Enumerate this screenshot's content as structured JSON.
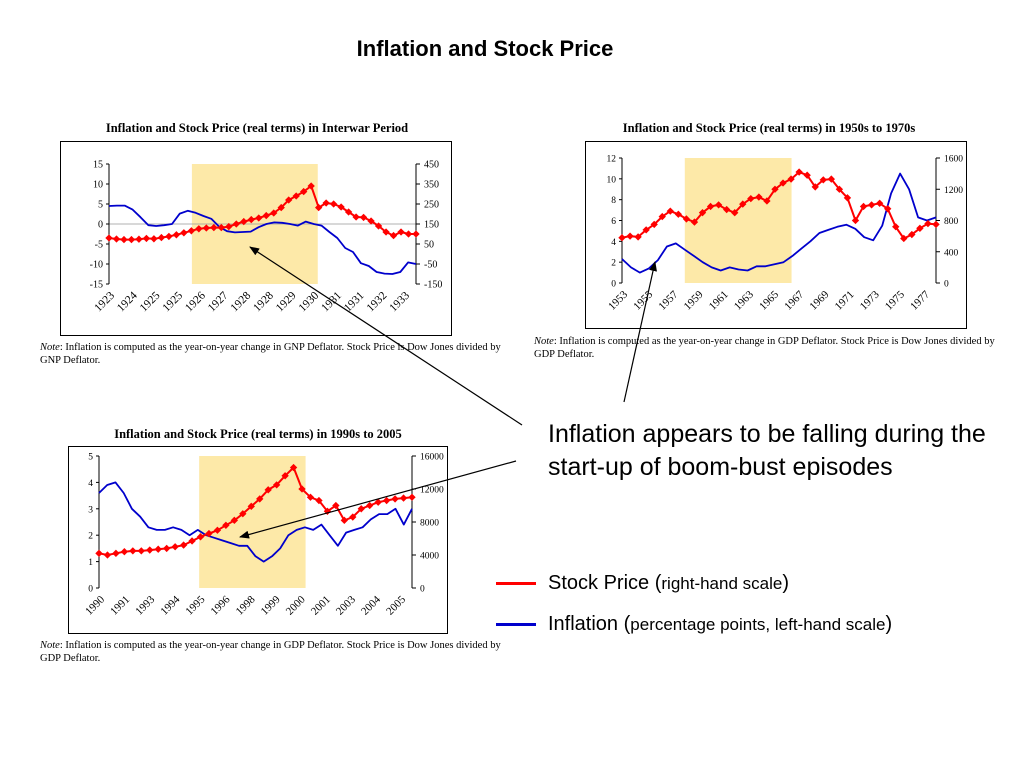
{
  "slide_title": "Inflation and Stock Price",
  "callout": "Inflation appears to be falling during the start-up of boom-bust episodes",
  "legend": [
    {
      "name": "Stock Price",
      "detail": "right-hand scale",
      "color": "#ff0000"
    },
    {
      "name": "Inflation",
      "detail": "percentage points, left-hand scale",
      "color": "#0000cc"
    }
  ],
  "colors": {
    "stock": "#ff0000",
    "inflation": "#0000cc",
    "boom_shade": "#fde9a8"
  },
  "chart_data": [
    {
      "type": "line",
      "title": "Inflation and Stock Price (real terms)  in Interwar Period",
      "note_label": "Note",
      "note_text": ": Inflation is computed as the year-on-year change in GNP Deflator. Stock Price is Dow Jones divided by GNP Deflator.",
      "x_labels": [
        "1923",
        "1924",
        "1925",
        "1925",
        "1926",
        "1927",
        "1928",
        "1928",
        "1929",
        "1930",
        "1931",
        "1931",
        "1932",
        "1933"
      ],
      "left_axis": {
        "ticks": [
          "15",
          "10",
          "5",
          "0",
          "-5",
          "-10",
          "-15"
        ],
        "range": [
          -15,
          15
        ]
      },
      "right_axis": {
        "ticks": [
          "450",
          "350",
          "250",
          "150",
          "50",
          "-50",
          "-150"
        ],
        "range": [
          -150,
          450
        ]
      },
      "zero_line": true,
      "boom_period": [
        0.27,
        0.68
      ],
      "series": [
        {
          "name": "Inflation",
          "axis": "left",
          "values": [
            4.5,
            4.6,
            4.6,
            3.6,
            1.7,
            -0.3,
            -0.5,
            -0.3,
            0.0,
            2.6,
            3.3,
            2.8,
            2.0,
            1.3,
            -0.7,
            -1.8,
            -2.1,
            -2.0,
            -1.9,
            -0.8,
            0.0,
            0.4,
            0.3,
            0.0,
            -0.4,
            0.6,
            0.0,
            -0.4,
            -2.0,
            -3.5,
            -6.0,
            -7.0,
            -9.8,
            -10.5,
            -12.0,
            -12.4,
            -12.5,
            -12.0,
            -9.6,
            -10.0
          ]
        },
        {
          "name": "Stock Price",
          "axis": "right",
          "values": [
            80,
            75,
            72,
            72,
            74,
            78,
            76,
            82,
            88,
            96,
            106,
            116,
            126,
            130,
            132,
            132,
            137,
            150,
            162,
            172,
            180,
            192,
            205,
            232,
            270,
            290,
            312,
            340,
            232,
            255,
            250,
            235,
            210,
            185,
            183,
            165,
            140,
            110,
            92,
            110,
            100,
            100
          ]
        }
      ]
    },
    {
      "type": "line",
      "title": "Inflation and Stock Price (real terms) in 1950s to 1970s",
      "note_label": "Note",
      "note_text": ": Inflation is computed as the year-on-year change in GDP Deflator. Stock Price is Dow Jones divided by GDP Deflator.",
      "x_labels": [
        "1953",
        "1955",
        "1957",
        "1959",
        "1961",
        "1963",
        "1965",
        "1967",
        "1969",
        "1971",
        "1973",
        "1975",
        "1977"
      ],
      "left_axis": {
        "ticks": [
          "12",
          "10",
          "8",
          "6",
          "4",
          "2",
          "0"
        ],
        "range": [
          0,
          12
        ]
      },
      "right_axis": {
        "ticks": [
          "1600",
          "1200",
          "800",
          "400",
          "0"
        ],
        "range": [
          0,
          1600
        ]
      },
      "zero_line": false,
      "boom_period": [
        0.2,
        0.54
      ],
      "series": [
        {
          "name": "Inflation",
          "axis": "left",
          "values": [
            2.3,
            1.5,
            1.0,
            1.4,
            2.2,
            3.5,
            3.8,
            3.2,
            2.6,
            2.0,
            1.5,
            1.2,
            1.5,
            1.3,
            1.2,
            1.6,
            1.6,
            1.8,
            2.0,
            2.6,
            3.3,
            4.0,
            4.8,
            5.1,
            5.4,
            5.6,
            5.2,
            4.4,
            4.1,
            5.5,
            8.6,
            10.5,
            9.0,
            6.3,
            6.0,
            6.3
          ]
        },
        {
          "name": "Stock Price",
          "axis": "right",
          "values": [
            580,
            600,
            590,
            680,
            750,
            850,
            920,
            880,
            820,
            780,
            900,
            980,
            1000,
            940,
            900,
            1010,
            1080,
            1100,
            1050,
            1200,
            1280,
            1330,
            1420,
            1380,
            1230,
            1320,
            1330,
            1200,
            1090,
            800,
            980,
            1000,
            1020,
            950,
            720,
            570,
            620,
            700,
            760,
            750
          ]
        }
      ]
    },
    {
      "type": "line",
      "title": "Inflation and Stock Price (real terms) in 1990s to 2005",
      "note_label": "Note",
      "note_text": ": Inflation is computed as the year-on-year change in GDP Deflator. Stock Price is Dow Jones divided by GDP Deflator.",
      "x_labels": [
        "1990",
        "1991",
        "1993",
        "1994",
        "1995",
        "1996",
        "1998",
        "1999",
        "2000",
        "2001",
        "2003",
        "2004",
        "2005"
      ],
      "left_axis": {
        "ticks": [
          "5",
          "4",
          "3",
          "2",
          "1",
          "0"
        ],
        "range": [
          0,
          5
        ]
      },
      "right_axis": {
        "ticks": [
          "16000",
          "12000",
          "8000",
          "4000",
          "0"
        ],
        "range": [
          0,
          16000
        ]
      },
      "zero_line": false,
      "boom_period": [
        0.32,
        0.66
      ],
      "series": [
        {
          "name": "Inflation",
          "axis": "left",
          "values": [
            3.6,
            3.9,
            4.0,
            3.6,
            3.0,
            2.7,
            2.3,
            2.2,
            2.2,
            2.3,
            2.2,
            2.0,
            2.2,
            2.0,
            1.9,
            1.8,
            1.7,
            1.6,
            1.6,
            1.2,
            1.0,
            1.2,
            1.5,
            2.0,
            2.2,
            2.3,
            2.2,
            2.4,
            2.0,
            1.6,
            2.1,
            2.2,
            2.3,
            2.6,
            2.8,
            2.8,
            3.0,
            2.4,
            3.0
          ]
        },
        {
          "name": "Stock Price",
          "axis": "right",
          "values": [
            4200,
            4000,
            4200,
            4400,
            4500,
            4500,
            4600,
            4700,
            4800,
            5000,
            5200,
            5700,
            6200,
            6600,
            7000,
            7600,
            8200,
            9000,
            9900,
            10800,
            11900,
            12500,
            13600,
            14600,
            12000,
            11000,
            10600,
            9300,
            10000,
            8200,
            8600,
            9600,
            10000,
            10400,
            10600,
            10800,
            10900,
            11000
          ]
        }
      ]
    }
  ]
}
